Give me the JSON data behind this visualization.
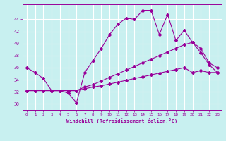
{
  "xlabel": "Windchill (Refroidissement éolien,°C)",
  "background_color": "#c8f0f0",
  "grid_color": "#ffffff",
  "line_color": "#990099",
  "xlim": [
    -0.5,
    23.5
  ],
  "ylim": [
    29.0,
    46.5
  ],
  "xticks": [
    0,
    1,
    2,
    3,
    4,
    5,
    6,
    7,
    8,
    9,
    10,
    11,
    12,
    13,
    14,
    15,
    16,
    17,
    18,
    19,
    20,
    21,
    22,
    23
  ],
  "yticks": [
    30,
    32,
    34,
    36,
    38,
    40,
    42,
    44
  ],
  "hours": [
    0,
    1,
    2,
    3,
    4,
    5,
    6,
    7,
    8,
    9,
    10,
    11,
    12,
    13,
    14,
    15,
    16,
    17,
    18,
    19,
    20,
    21,
    22,
    23
  ],
  "curve1": [
    36.0,
    35.2,
    34.2,
    32.2,
    32.2,
    31.8,
    30.2,
    35.2,
    37.2,
    39.2,
    41.5,
    43.2,
    44.2,
    44.0,
    45.5,
    45.5,
    41.5,
    44.8,
    40.5,
    42.2,
    40.2,
    39.2,
    36.8,
    36.0
  ],
  "curve2": [
    32.2,
    32.2,
    32.2,
    32.2,
    32.2,
    32.2,
    32.2,
    32.8,
    33.2,
    33.8,
    34.4,
    35.0,
    35.6,
    36.2,
    36.8,
    37.4,
    38.0,
    38.6,
    39.2,
    39.8,
    40.2,
    38.5,
    36.5,
    35.2
  ],
  "curve3": [
    32.2,
    32.2,
    32.2,
    32.2,
    32.2,
    32.2,
    32.2,
    32.5,
    32.8,
    33.0,
    33.3,
    33.6,
    33.9,
    34.2,
    34.5,
    34.8,
    35.1,
    35.4,
    35.7,
    36.0,
    35.2,
    35.5,
    35.2,
    35.2
  ]
}
